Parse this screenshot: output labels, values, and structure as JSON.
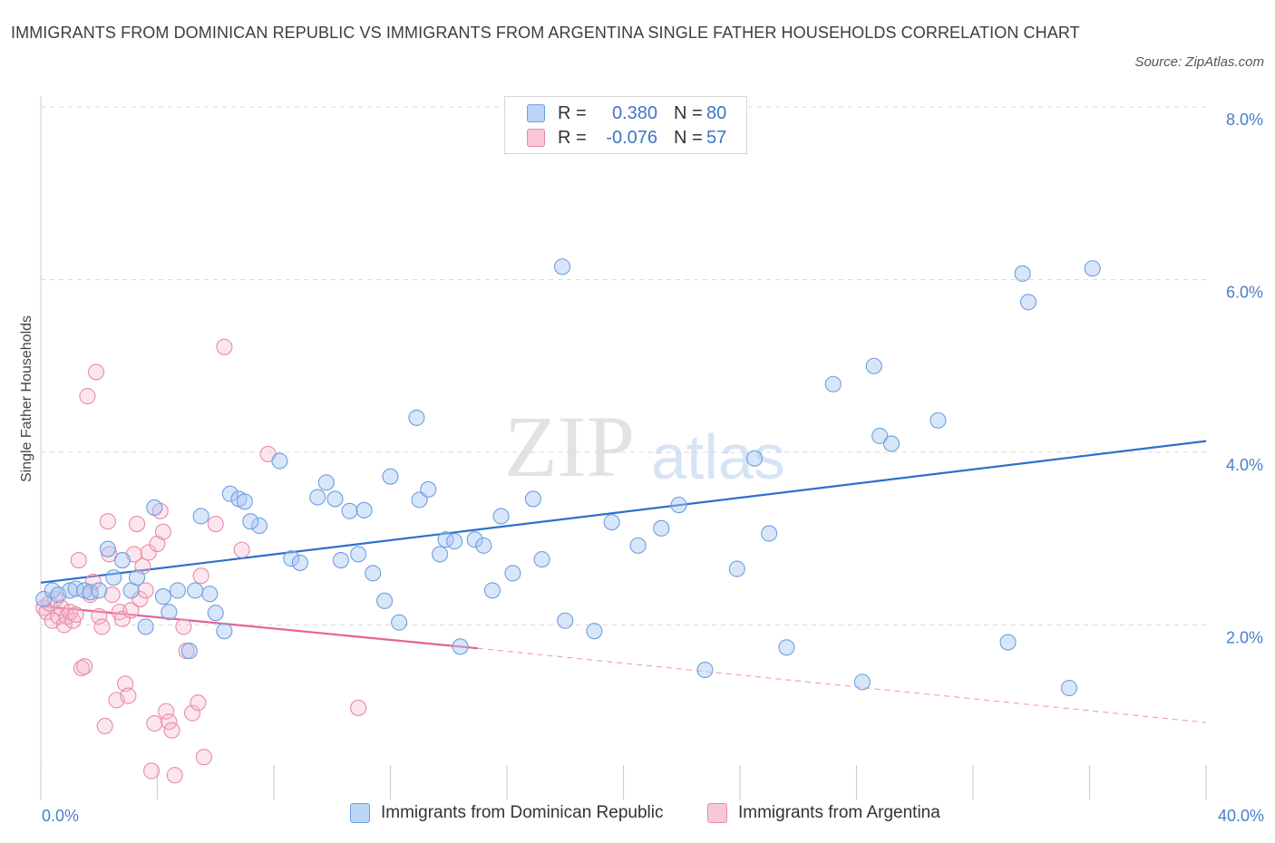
{
  "title": "IMMIGRANTS FROM DOMINICAN REPUBLIC VS IMMIGRANTS FROM ARGENTINA SINGLE FATHER HOUSEHOLDS CORRELATION CHART",
  "source": "Source: ZipAtlas.com",
  "watermark": {
    "zip": "ZIP",
    "atlas": "atlas"
  },
  "legend": {
    "rows": [
      {
        "r_label": "R =",
        "r_value": "0.380",
        "n_label": "N =",
        "n_value": "80",
        "color": "#a9c8f4"
      },
      {
        "r_label": "R =",
        "r_value": "-0.076",
        "n_label": "N =",
        "n_value": "57",
        "color": "#f7b6cb"
      }
    ]
  },
  "bottom_legend": {
    "series1": "Immigrants from Dominican Republic",
    "series2": "Immigrants from Argentina"
  },
  "x_tick_left": "0.0%",
  "x_tick_right": "40.0%",
  "colors": {
    "blue_fill": "#a9c8f4",
    "blue_stroke": "#6f9fdc",
    "blue_line": "#2f6fcb",
    "pink_fill": "#f7b6cb",
    "pink_stroke": "#e98aab",
    "pink_line": "#e4639a",
    "grid": "#d9d9d9",
    "tick_text": "#4a7fc9"
  },
  "chart_data": {
    "type": "scatter",
    "title": "IMMIGRANTS FROM DOMINICAN REPUBLIC VS IMMIGRANTS FROM ARGENTINA SINGLE FATHER HOUSEHOLDS CORRELATION CHART",
    "ylabel": "Single Father Households",
    "xlabel": "",
    "xlim": [
      0,
      40
    ],
    "ylim": [
      0,
      8
    ],
    "x_unit": "%",
    "y_unit": "%",
    "y_ticks": [
      {
        "value": 2,
        "label": "2.0%"
      },
      {
        "value": 4,
        "label": "4.0%"
      },
      {
        "value": 6,
        "label": "6.0%"
      },
      {
        "value": 8,
        "label": "8.0%"
      }
    ],
    "grid": true,
    "legend_position": "top-center",
    "series": [
      {
        "name": "Immigrants from Dominican Republic",
        "color": "#a9c8f4",
        "trend": {
          "x": [
            0,
            40
          ],
          "y": [
            2.49,
            4.13
          ],
          "style": "solid"
        },
        "points": [
          [
            0.1,
            2.3
          ],
          [
            0.4,
            2.4
          ],
          [
            0.6,
            2.35
          ],
          [
            1.0,
            2.4
          ],
          [
            1.2,
            2.42
          ],
          [
            1.5,
            2.4
          ],
          [
            1.7,
            2.38
          ],
          [
            2.0,
            2.4
          ],
          [
            2.3,
            2.88
          ],
          [
            2.5,
            2.55
          ],
          [
            2.8,
            2.75
          ],
          [
            3.1,
            2.4
          ],
          [
            3.3,
            2.55
          ],
          [
            3.6,
            1.98
          ],
          [
            3.9,
            3.36
          ],
          [
            4.2,
            2.33
          ],
          [
            4.4,
            2.15
          ],
          [
            4.7,
            2.4
          ],
          [
            5.1,
            1.7
          ],
          [
            5.3,
            2.4
          ],
          [
            5.5,
            3.26
          ],
          [
            5.8,
            2.36
          ],
          [
            6.0,
            2.14
          ],
          [
            6.3,
            1.93
          ],
          [
            6.5,
            3.52
          ],
          [
            6.8,
            3.46
          ],
          [
            7.0,
            3.43
          ],
          [
            7.5,
            3.15
          ],
          [
            7.2,
            3.2
          ],
          [
            8.2,
            3.9
          ],
          [
            8.6,
            2.77
          ],
          [
            8.9,
            2.72
          ],
          [
            9.5,
            3.48
          ],
          [
            9.8,
            3.65
          ],
          [
            10.1,
            3.46
          ],
          [
            10.3,
            2.75
          ],
          [
            10.6,
            3.32
          ],
          [
            10.9,
            2.82
          ],
          [
            11.1,
            3.33
          ],
          [
            11.4,
            2.6
          ],
          [
            11.8,
            2.28
          ],
          [
            12.0,
            3.72
          ],
          [
            12.3,
            2.03
          ],
          [
            12.9,
            4.4
          ],
          [
            13.0,
            3.45
          ],
          [
            13.3,
            3.57
          ],
          [
            13.7,
            2.82
          ],
          [
            13.9,
            2.99
          ],
          [
            14.2,
            2.97
          ],
          [
            14.4,
            1.75
          ],
          [
            14.9,
            2.99
          ],
          [
            15.2,
            2.92
          ],
          [
            15.5,
            2.4
          ],
          [
            15.8,
            3.26
          ],
          [
            16.2,
            2.6
          ],
          [
            16.9,
            3.46
          ],
          [
            17.2,
            2.76
          ],
          [
            17.9,
            6.15
          ],
          [
            18.0,
            2.05
          ],
          [
            19.0,
            1.93
          ],
          [
            19.6,
            3.19
          ],
          [
            20.5,
            2.92
          ],
          [
            21.3,
            3.12
          ],
          [
            21.9,
            3.39
          ],
          [
            22.8,
            1.48
          ],
          [
            23.9,
            2.65
          ],
          [
            24.5,
            3.93
          ],
          [
            25.0,
            3.06
          ],
          [
            25.6,
            1.74
          ],
          [
            27.2,
            4.79
          ],
          [
            28.2,
            1.34
          ],
          [
            28.6,
            5.0
          ],
          [
            28.8,
            4.19
          ],
          [
            29.2,
            4.1
          ],
          [
            30.8,
            4.37
          ],
          [
            33.2,
            1.8
          ],
          [
            33.7,
            6.07
          ],
          [
            33.9,
            5.74
          ],
          [
            35.3,
            1.27
          ],
          [
            36.1,
            6.13
          ]
        ]
      },
      {
        "name": "Immigrants from Argentina",
        "color": "#f7b6cb",
        "trend": {
          "x": [
            0,
            15
          ],
          "y": [
            2.22,
            1.73
          ],
          "style": "solid",
          "extended_to": [
            40,
            0.87
          ],
          "extended_style": "dashed"
        },
        "points": [
          [
            0.1,
            2.2
          ],
          [
            0.2,
            2.15
          ],
          [
            0.3,
            2.25
          ],
          [
            0.4,
            2.05
          ],
          [
            0.5,
            2.3
          ],
          [
            0.6,
            2.1
          ],
          [
            0.7,
            2.2
          ],
          [
            0.8,
            2.0
          ],
          [
            0.9,
            2.1
          ],
          [
            1.0,
            2.15
          ],
          [
            1.1,
            2.05
          ],
          [
            1.2,
            2.12
          ],
          [
            1.3,
            2.75
          ],
          [
            1.4,
            1.5
          ],
          [
            1.5,
            1.52
          ],
          [
            1.6,
            4.65
          ],
          [
            1.7,
            2.35
          ],
          [
            1.8,
            2.5
          ],
          [
            1.9,
            4.93
          ],
          [
            2.0,
            2.1
          ],
          [
            2.1,
            1.98
          ],
          [
            2.2,
            0.83
          ],
          [
            2.3,
            3.2
          ],
          [
            2.35,
            2.82
          ],
          [
            2.45,
            2.35
          ],
          [
            2.6,
            1.13
          ],
          [
            2.7,
            2.15
          ],
          [
            2.8,
            2.07
          ],
          [
            2.9,
            1.32
          ],
          [
            3.0,
            1.18
          ],
          [
            3.1,
            2.17
          ],
          [
            3.2,
            2.82
          ],
          [
            3.3,
            3.17
          ],
          [
            3.4,
            2.3
          ],
          [
            3.5,
            2.68
          ],
          [
            3.6,
            2.4
          ],
          [
            3.7,
            2.84
          ],
          [
            3.8,
            0.31
          ],
          [
            3.9,
            0.86
          ],
          [
            4.0,
            2.94
          ],
          [
            4.1,
            3.32
          ],
          [
            4.2,
            3.08
          ],
          [
            4.3,
            1.0
          ],
          [
            4.4,
            0.88
          ],
          [
            4.5,
            0.78
          ],
          [
            4.6,
            0.26
          ],
          [
            4.9,
            1.98
          ],
          [
            5.0,
            1.7
          ],
          [
            5.2,
            0.98
          ],
          [
            5.4,
            1.1
          ],
          [
            5.5,
            2.57
          ],
          [
            5.6,
            0.47
          ],
          [
            6.0,
            3.17
          ],
          [
            6.3,
            5.22
          ],
          [
            6.9,
            2.87
          ],
          [
            7.8,
            3.98
          ],
          [
            10.9,
            1.04
          ]
        ]
      }
    ]
  }
}
